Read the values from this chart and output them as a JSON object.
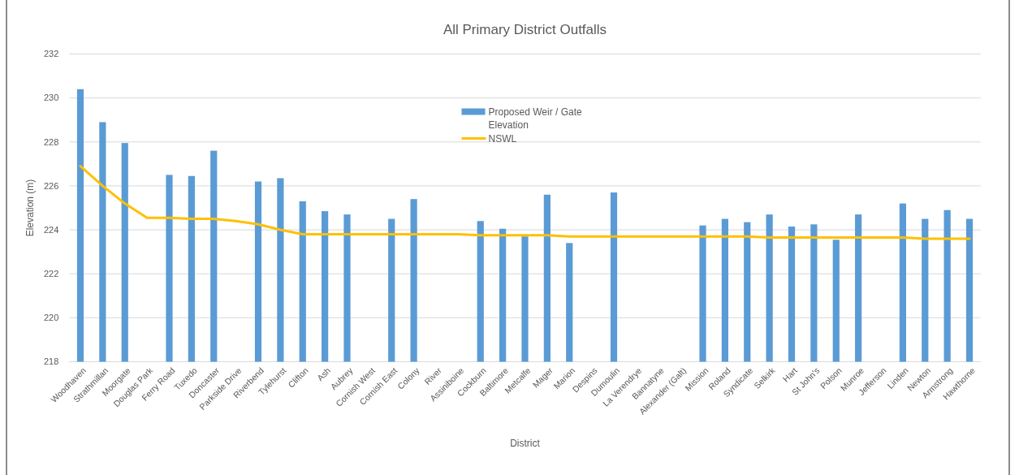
{
  "chart_data": {
    "type": "bar",
    "title": "All Primary District Outfalls",
    "xlabel": "District",
    "ylabel": "Elevation (m)",
    "categories": [
      "Woodhaven",
      "Strathmillan",
      "Moorgate",
      "Douglas Park",
      "Ferry Road",
      "Tuxedo",
      "Doncaster",
      "Parkside Drive",
      "Riverbend",
      "Tylehurst",
      "Clifton",
      "Ash",
      "Aubrey",
      "Cornish West",
      "Cornish East",
      "Colony",
      "River",
      "Assiniboine",
      "Cockburn",
      "Baltimore",
      "Metcalfe",
      "Mager",
      "Marion",
      "Despins",
      "Dumoulin",
      "La Verendrye",
      "Bannatyne",
      "Alexander (Galt)",
      "Mission",
      "Roland",
      "Syndicate",
      "Selkirk",
      "Hart",
      "St John's",
      "Polson",
      "Munroe",
      "Jefferson",
      "Linden",
      "Newton",
      "Armstrong",
      "Hawthorne"
    ],
    "series": [
      {
        "name": "Proposed Weir / Gate Elevation",
        "color": "#5b9bd5",
        "values": [
          230.4,
          228.9,
          227.95,
          null,
          226.5,
          226.45,
          227.6,
          null,
          226.2,
          226.35,
          225.3,
          224.85,
          224.7,
          null,
          224.5,
          225.4,
          null,
          null,
          224.4,
          224.05,
          223.7,
          225.6,
          223.4,
          null,
          225.7,
          null,
          null,
          null,
          224.2,
          224.5,
          224.35,
          224.7,
          224.15,
          224.25,
          223.55,
          224.7,
          null,
          225.2,
          224.5,
          224.9,
          224.5
        ]
      },
      {
        "name": "NSWL",
        "type": "line",
        "color": "#ffc000",
        "values": [
          226.9,
          226.0,
          225.2,
          224.55,
          224.55,
          224.5,
          224.5,
          224.4,
          224.25,
          224.0,
          223.8,
          223.8,
          223.8,
          223.8,
          223.8,
          223.8,
          223.8,
          223.8,
          223.75,
          223.75,
          223.75,
          223.75,
          223.7,
          223.7,
          223.7,
          223.7,
          223.7,
          223.7,
          223.7,
          223.7,
          223.7,
          223.65,
          223.65,
          223.65,
          223.65,
          223.65,
          223.65,
          223.65,
          223.6,
          223.6,
          223.6
        ]
      }
    ],
    "ylim": [
      218,
      232
    ],
    "yticks": [
      218,
      220,
      222,
      224,
      226,
      228,
      230,
      232
    ],
    "grid": "y",
    "legend": "top"
  }
}
